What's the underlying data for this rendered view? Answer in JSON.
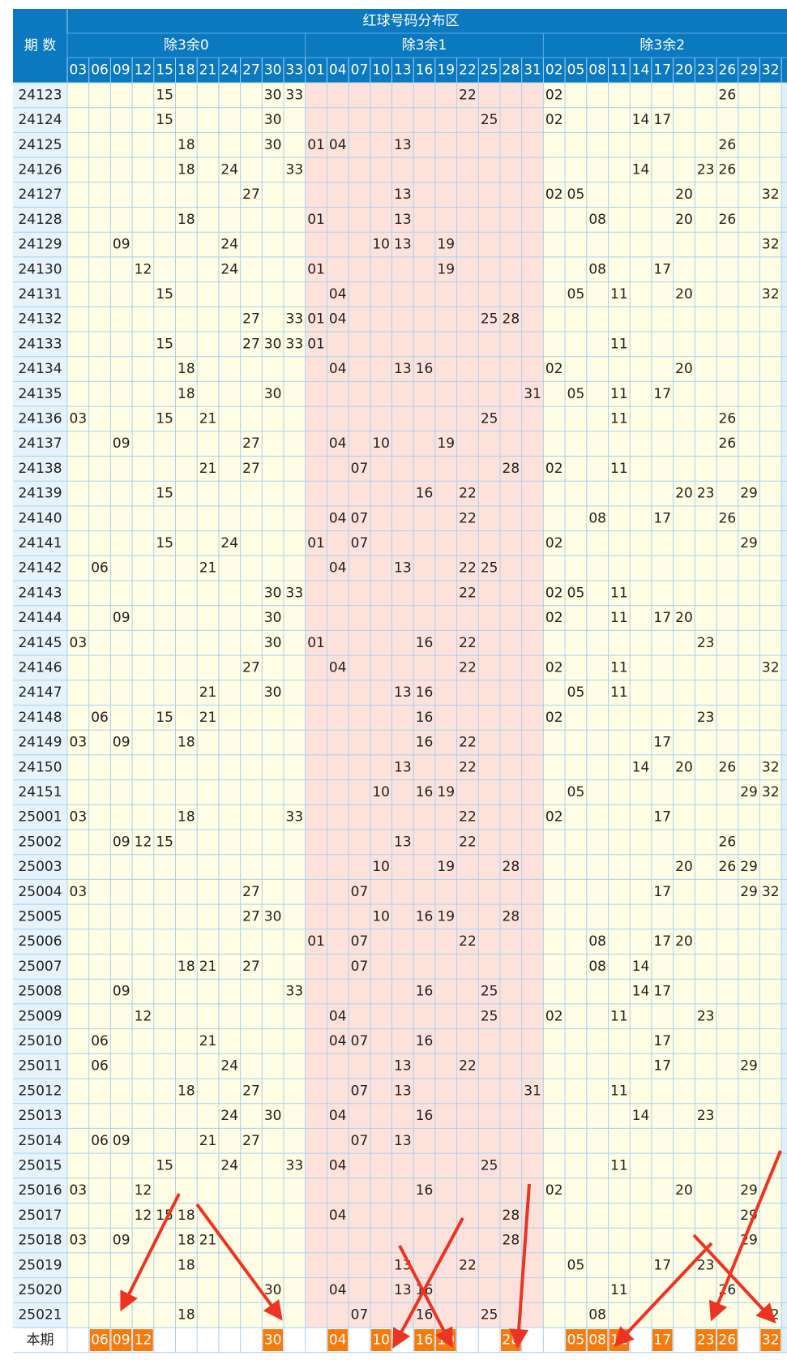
{
  "table": {
    "title": "红球号码分布区",
    "period_header": "期 数",
    "groups": [
      {
        "name": "除3余0",
        "columns": [
          "03",
          "06",
          "09",
          "12",
          "15",
          "18",
          "21",
          "24",
          "27",
          "30",
          "33"
        ]
      },
      {
        "name": "除3余1",
        "columns": [
          "01",
          "04",
          "07",
          "10",
          "13",
          "16",
          "19",
          "22",
          "25",
          "28",
          "31"
        ]
      },
      {
        "name": "除3余2",
        "columns": [
          "02",
          "05",
          "08",
          "11",
          "14",
          "17",
          "20",
          "23",
          "26",
          "29",
          "32"
        ]
      }
    ],
    "rows": [
      {
        "period": "24123",
        "numbers": [
          "15",
          "30",
          "33",
          "22",
          "02",
          "26"
        ]
      },
      {
        "period": "24124",
        "numbers": [
          "15",
          "30",
          "25",
          "02",
          "14",
          "17"
        ]
      },
      {
        "period": "24125",
        "numbers": [
          "18",
          "30",
          "01",
          "04",
          "13",
          "26"
        ]
      },
      {
        "period": "24126",
        "numbers": [
          "18",
          "24",
          "33",
          "14",
          "23",
          "26"
        ]
      },
      {
        "period": "24127",
        "numbers": [
          "27",
          "13",
          "02",
          "05",
          "20",
          "32"
        ]
      },
      {
        "period": "24128",
        "numbers": [
          "18",
          "01",
          "13",
          "08",
          "20",
          "26"
        ]
      },
      {
        "period": "24129",
        "numbers": [
          "09",
          "24",
          "10",
          "13",
          "19",
          "32"
        ]
      },
      {
        "period": "24130",
        "numbers": [
          "12",
          "24",
          "01",
          "19",
          "08",
          "17"
        ]
      },
      {
        "period": "24131",
        "numbers": [
          "15",
          "04",
          "05",
          "11",
          "20",
          "32"
        ]
      },
      {
        "period": "24132",
        "numbers": [
          "27",
          "33",
          "01",
          "04",
          "25",
          "28"
        ]
      },
      {
        "period": "24133",
        "numbers": [
          "15",
          "27",
          "30",
          "33",
          "01",
          "11"
        ]
      },
      {
        "period": "24134",
        "numbers": [
          "18",
          "04",
          "13",
          "16",
          "02",
          "20"
        ]
      },
      {
        "period": "24135",
        "numbers": [
          "18",
          "30",
          "31",
          "05",
          "11",
          "17"
        ]
      },
      {
        "period": "24136",
        "numbers": [
          "03",
          "15",
          "21",
          "25",
          "11",
          "26"
        ]
      },
      {
        "period": "24137",
        "numbers": [
          "09",
          "27",
          "04",
          "10",
          "19",
          "26"
        ]
      },
      {
        "period": "24138",
        "numbers": [
          "21",
          "27",
          "07",
          "28",
          "02",
          "11"
        ]
      },
      {
        "period": "24139",
        "numbers": [
          "15",
          "16",
          "22",
          "20",
          "23",
          "29"
        ]
      },
      {
        "period": "24140",
        "numbers": [
          "04",
          "07",
          "22",
          "08",
          "17",
          "26"
        ]
      },
      {
        "period": "24141",
        "numbers": [
          "15",
          "24",
          "01",
          "07",
          "02",
          "29"
        ]
      },
      {
        "period": "24142",
        "numbers": [
          "06",
          "21",
          "04",
          "13",
          "22",
          "25"
        ]
      },
      {
        "period": "24143",
        "numbers": [
          "30",
          "33",
          "22",
          "02",
          "05",
          "11"
        ]
      },
      {
        "period": "24144",
        "numbers": [
          "09",
          "30",
          "02",
          "11",
          "17",
          "20"
        ]
      },
      {
        "period": "24145",
        "numbers": [
          "03",
          "30",
          "01",
          "16",
          "22",
          "23"
        ]
      },
      {
        "period": "24146",
        "numbers": [
          "27",
          "04",
          "22",
          "02",
          "11",
          "32"
        ]
      },
      {
        "period": "24147",
        "numbers": [
          "21",
          "30",
          "13",
          "16",
          "05",
          "11"
        ]
      },
      {
        "period": "24148",
        "numbers": [
          "06",
          "15",
          "21",
          "16",
          "02",
          "23"
        ]
      },
      {
        "period": "24149",
        "numbers": [
          "03",
          "09",
          "18",
          "16",
          "22",
          "17"
        ]
      },
      {
        "period": "24150",
        "numbers": [
          "13",
          "22",
          "14",
          "20",
          "26",
          "32"
        ]
      },
      {
        "period": "24151",
        "numbers": [
          "10",
          "16",
          "19",
          "05",
          "29",
          "32"
        ]
      },
      {
        "period": "25001",
        "numbers": [
          "03",
          "18",
          "33",
          "22",
          "02",
          "17"
        ]
      },
      {
        "period": "25002",
        "numbers": [
          "09",
          "12",
          "15",
          "13",
          "22",
          "26"
        ]
      },
      {
        "period": "25003",
        "numbers": [
          "10",
          "19",
          "28",
          "20",
          "26",
          "29"
        ]
      },
      {
        "period": "25004",
        "numbers": [
          "03",
          "27",
          "07",
          "17",
          "29",
          "32"
        ]
      },
      {
        "period": "25005",
        "numbers": [
          "27",
          "30",
          "10",
          "16",
          "19",
          "28"
        ]
      },
      {
        "period": "25006",
        "numbers": [
          "01",
          "07",
          "22",
          "08",
          "17",
          "20"
        ]
      },
      {
        "period": "25007",
        "numbers": [
          "18",
          "21",
          "27",
          "07",
          "08",
          "14"
        ]
      },
      {
        "period": "25008",
        "numbers": [
          "09",
          "33",
          "16",
          "25",
          "14",
          "17"
        ]
      },
      {
        "period": "25009",
        "numbers": [
          "12",
          "04",
          "25",
          "02",
          "11",
          "23"
        ]
      },
      {
        "period": "25010",
        "numbers": [
          "06",
          "21",
          "04",
          "07",
          "16",
          "17"
        ]
      },
      {
        "period": "25011",
        "numbers": [
          "06",
          "24",
          "13",
          "22",
          "17",
          "29"
        ]
      },
      {
        "period": "25012",
        "numbers": [
          "18",
          "27",
          "07",
          "13",
          "31",
          "11"
        ]
      },
      {
        "period": "25013",
        "numbers": [
          "24",
          "30",
          "04",
          "16",
          "14",
          "23"
        ]
      },
      {
        "period": "25014",
        "numbers": [
          "06",
          "09",
          "21",
          "27",
          "07",
          "13"
        ]
      },
      {
        "period": "25015",
        "numbers": [
          "15",
          "24",
          "33",
          "04",
          "25",
          "11"
        ]
      },
      {
        "period": "25016",
        "numbers": [
          "03",
          "12",
          "16",
          "02",
          "20",
          "29"
        ]
      },
      {
        "period": "25017",
        "numbers": [
          "12",
          "15",
          "18",
          "04",
          "28",
          "29"
        ]
      },
      {
        "period": "25018",
        "numbers": [
          "03",
          "09",
          "18",
          "21",
          "28",
          "29"
        ]
      },
      {
        "period": "25019",
        "numbers": [
          "18",
          "13",
          "22",
          "05",
          "17",
          "23"
        ]
      },
      {
        "period": "25020",
        "numbers": [
          "30",
          "04",
          "13",
          "16",
          "11",
          "26"
        ]
      },
      {
        "period": "25021",
        "numbers": [
          "18",
          "07",
          "16",
          "25",
          "08",
          "32"
        ]
      }
    ],
    "current": {
      "label": "本期",
      "numbers": [
        "06",
        "09",
        "12",
        "30",
        "04",
        "10",
        "16",
        "19",
        "28",
        "05",
        "08",
        "11",
        "17",
        "23",
        "26",
        "32"
      ]
    }
  }
}
